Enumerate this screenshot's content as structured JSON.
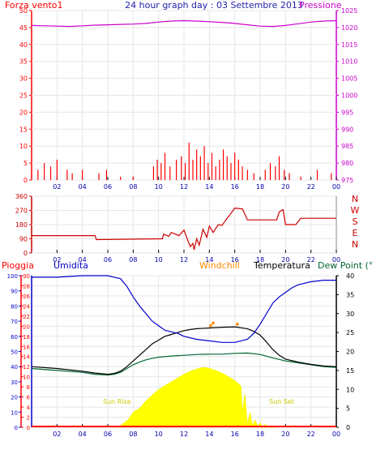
{
  "header": {
    "title": "24 hour graph day : 03 Settembre 2013",
    "left_label": "Forza vento1",
    "right_label": "Pressione"
  },
  "colors": {
    "wind": "#ff0000",
    "pressure": "#cc00cc",
    "direction": "#cc0000",
    "humidity": "#0000cc",
    "windchill": "#ff8800",
    "temperature": "#000000",
    "dewpoint": "#006633",
    "solar": "#ffff00",
    "rain": "#ff0000",
    "grid": "#e6e6e6",
    "frame": "#888888"
  },
  "chart_data": [
    {
      "type": "line",
      "name": "wind-pressure",
      "left_axis": {
        "label": "Forza vento1",
        "range": [
          0,
          50
        ],
        "ticks": [
          "0",
          "5",
          "10",
          "15",
          "20",
          "25",
          "30",
          "35",
          "40",
          "45",
          "50"
        ]
      },
      "right_axis": {
        "label": "Pressione",
        "range": [
          975,
          1025
        ],
        "ticks": [
          "975",
          "980",
          "985",
          "990",
          "995",
          "1000",
          "1005",
          "1010",
          "1015",
          "1020",
          "1025"
        ]
      },
      "x_ticks": [
        "02",
        "04",
        "06",
        "08",
        "10",
        "12",
        "14",
        "16",
        "18",
        "20",
        "22",
        "00"
      ],
      "pressure": {
        "x": [
          0,
          1,
          2,
          3,
          4,
          5,
          6,
          7,
          8,
          9,
          10,
          11,
          12,
          13,
          14,
          15,
          16,
          17,
          18,
          19,
          20,
          21,
          22,
          23,
          24
        ],
        "values": [
          1020.6,
          1020.5,
          1020.4,
          1020.3,
          1020.5,
          1020.7,
          1020.8,
          1020.9,
          1021.0,
          1021.2,
          1021.6,
          1021.9,
          1022.0,
          1021.9,
          1021.7,
          1021.5,
          1021.2,
          1020.8,
          1020.4,
          1020.3,
          1020.6,
          1021.1,
          1021.6,
          1021.9,
          1022.0
        ]
      },
      "wind": {
        "x": [
          0.5,
          1.0,
          1.5,
          2.0,
          2.8,
          3.2,
          4.0,
          5.3,
          5.9,
          7.0,
          8.0,
          9.6,
          9.9,
          10.2,
          10.5,
          10.9,
          11.4,
          11.8,
          12.1,
          12.4,
          12.7,
          13.0,
          13.3,
          13.6,
          13.9,
          14.2,
          14.5,
          14.8,
          15.1,
          15.4,
          15.7,
          16.0,
          16.3,
          16.6,
          17.0,
          17.5,
          18.4,
          18.8,
          19.2,
          19.5,
          19.9,
          20.3,
          21.2,
          22.5,
          23.6
        ],
        "values": [
          3,
          5,
          4,
          6,
          3,
          2,
          3,
          2,
          3,
          1,
          1,
          4,
          6,
          5,
          8,
          4,
          6,
          7,
          5,
          11,
          6,
          9,
          7,
          10,
          5,
          8,
          4,
          6,
          9,
          7,
          5,
          8,
          6,
          4,
          3,
          2,
          3,
          5,
          4,
          7,
          3,
          2,
          1,
          3,
          2
        ]
      }
    },
    {
      "type": "line",
      "name": "wind-direction",
      "y_ticks": [
        "0",
        "90",
        "180",
        "270",
        "360"
      ],
      "range": [
        0,
        360
      ],
      "compass": [
        "N",
        "W",
        "S",
        "E",
        "N"
      ],
      "x_ticks": [
        "02",
        "04",
        "06",
        "08",
        "10",
        "12",
        "14",
        "16",
        "18",
        "20",
        "22",
        "00"
      ],
      "x": [
        0,
        5,
        5.1,
        10.3,
        10.4,
        10.8,
        11.0,
        11.6,
        12.0,
        12.3,
        12.5,
        12.7,
        12.8,
        13.0,
        13.2,
        13.5,
        13.8,
        14.0,
        14.3,
        14.7,
        15.0,
        15.3,
        15.6,
        16.0,
        16.6,
        17.0,
        19.3,
        19.5,
        19.8,
        20.0,
        20.8,
        21.2,
        24
      ],
      "values": [
        110,
        110,
        85,
        90,
        120,
        105,
        130,
        110,
        145,
        80,
        40,
        60,
        20,
        90,
        50,
        150,
        100,
        170,
        130,
        180,
        175,
        210,
        240,
        285,
        280,
        210,
        210,
        260,
        275,
        180,
        180,
        220,
        220
      ]
    },
    {
      "type": "line",
      "name": "rain-humidity-temperature",
      "labels": {
        "rain": "Pioggia",
        "humidity": "Umidita",
        "windchill": "Windchill",
        "temperature": "Temperatura",
        "dewpoint": "Dew Point (°C"
      },
      "left_rain_range": [
        0,
        30
      ],
      "left_rain_ticks": [
        "0",
        "2",
        "4",
        "6",
        "8",
        "10",
        "12",
        "14",
        "16",
        "18",
        "20",
        "22",
        "24",
        "26",
        "28",
        "30"
      ],
      "left_hum_range": [
        0,
        100
      ],
      "left_hum_ticks": [
        "0",
        "10",
        "20",
        "30",
        "40",
        "50",
        "60",
        "70",
        "80",
        "90",
        "100"
      ],
      "right_temp_range": [
        0,
        40
      ],
      "right_temp_ticks": [
        "0",
        "5",
        "10",
        "15",
        "20",
        "25",
        "30",
        "35",
        "40"
      ],
      "x_ticks": [
        "02",
        "04",
        "06",
        "08",
        "10",
        "12",
        "14",
        "16",
        "18",
        "20",
        "22",
        "00"
      ],
      "annotations": {
        "sunrise": "Sun Rise",
        "sunset": "Sun Set"
      },
      "humidity": {
        "x": [
          0,
          2,
          4,
          5,
          6,
          6.5,
          7,
          7.5,
          8,
          8.5,
          9,
          9.5,
          10,
          10.5,
          11,
          11.5,
          12,
          13,
          14,
          15,
          16,
          17,
          17.5,
          18,
          18.5,
          19,
          19.5,
          20,
          20.5,
          21,
          22,
          23,
          24
        ],
        "values": [
          99,
          99,
          100,
          100,
          100,
          99,
          98,
          93,
          86,
          80,
          75,
          70,
          67,
          64,
          63,
          62,
          60,
          58,
          57,
          56,
          56,
          58,
          62,
          68,
          75,
          82,
          86,
          89,
          92,
          94,
          96,
          97,
          97
        ]
      },
      "temperature": {
        "x": [
          0,
          2,
          4,
          5,
          6,
          6.5,
          7,
          7.5,
          8,
          8.5,
          9,
          9.5,
          10,
          10.5,
          11,
          11.5,
          12,
          12.5,
          13,
          14,
          15,
          16,
          17,
          17.5,
          18,
          18.5,
          19,
          19.5,
          20,
          21,
          22,
          23,
          24
        ],
        "values": [
          16,
          15.5,
          14.8,
          14.3,
          14,
          14.2,
          14.8,
          16,
          17.5,
          19,
          20.5,
          22,
          23,
          24,
          24.5,
          25,
          25.5,
          25.8,
          26,
          26.2,
          26.4,
          26.5,
          26,
          25.3,
          24.3,
          22.5,
          20.5,
          19,
          18,
          17.2,
          16.6,
          16.2,
          16
        ]
      },
      "dewpoint": {
        "x": [
          0,
          2,
          4,
          5,
          6,
          6.5,
          7,
          7.5,
          8,
          8.5,
          9,
          9.5,
          10,
          11,
          12,
          13,
          14,
          15,
          16,
          17,
          18,
          19,
          20,
          21,
          22,
          23,
          24
        ],
        "values": [
          15.5,
          15,
          14.5,
          14,
          13.8,
          14,
          14.5,
          15.5,
          16.5,
          17.2,
          17.8,
          18.2,
          18.5,
          18.8,
          19,
          19.2,
          19.3,
          19.3,
          19.5,
          19.6,
          19.2,
          18.3,
          17.5,
          17,
          16.5,
          16,
          15.8
        ]
      },
      "windchill": {
        "x": [
          14.1,
          14.3,
          16.2
        ],
        "values": [
          26.8,
          27.5,
          27.2
        ]
      },
      "solar": {
        "x": [
          6.8,
          7.2,
          7.6,
          8,
          8.5,
          9,
          9.5,
          10,
          10.5,
          11,
          11.5,
          12,
          12.5,
          13,
          13.5,
          14,
          14.5,
          15,
          15.5,
          16,
          16.3,
          16.5,
          16.6,
          16.8,
          17,
          17.2,
          17.4,
          17.6,
          17.8,
          18.0,
          18.2,
          18.4,
          18.6,
          18.8,
          19,
          19.3
        ],
        "values": [
          0,
          1,
          2,
          4,
          5,
          7,
          8.5,
          10,
          11,
          12,
          13,
          14,
          14.8,
          15.4,
          15.8,
          15.6,
          15,
          14.3,
          13.4,
          12.3,
          11.5,
          10.8,
          4,
          9,
          1,
          4,
          0.5,
          2,
          0.3,
          1.2,
          0.2,
          0.8,
          0.2,
          0.5,
          0.1,
          0
        ]
      },
      "rain": {
        "x": [
          0,
          24
        ],
        "values": [
          0,
          0
        ]
      }
    }
  ]
}
